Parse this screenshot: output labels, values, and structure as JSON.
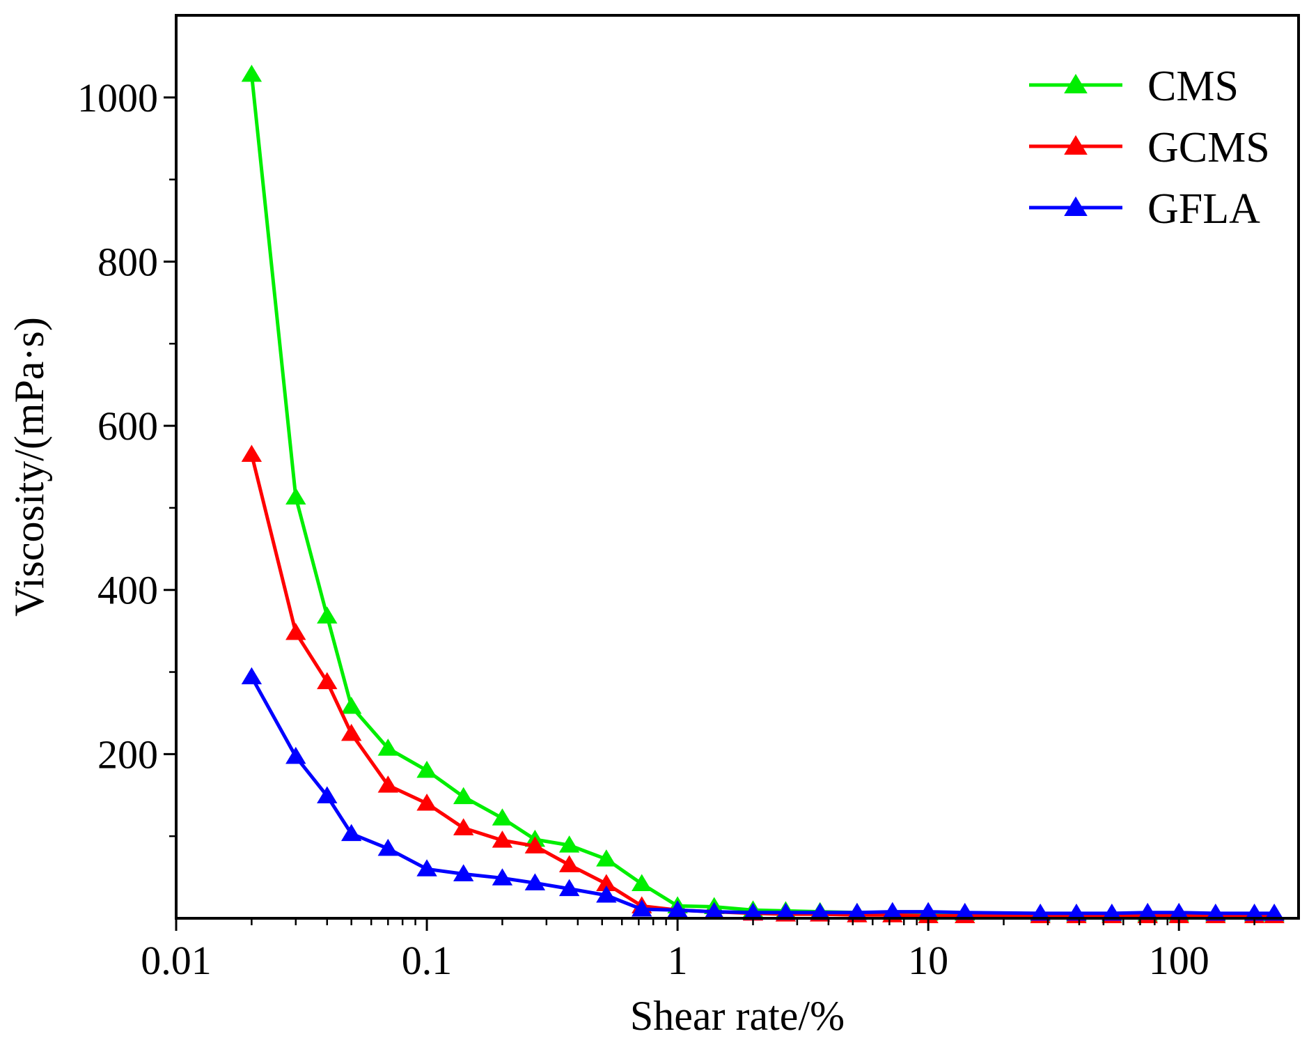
{
  "chart_data": {
    "type": "line",
    "title": "",
    "xlabel": "Shear rate/%",
    "ylabel": "Viscosity/(mPa·s)",
    "xscale": "log",
    "xlim": [
      0.01,
      300
    ],
    "ylim": [
      0,
      1100
    ],
    "x_ticks": [
      0.01,
      0.1,
      1,
      10,
      100
    ],
    "x_tick_labels": [
      "0.01",
      "0.1",
      "1",
      "10",
      "100"
    ],
    "y_ticks": [
      200,
      400,
      600,
      800,
      1000
    ],
    "y_tick_labels": [
      "200",
      "400",
      "600",
      "800",
      "1000"
    ],
    "legend_position": "top-right",
    "marker": "triangle",
    "series": [
      {
        "name": "CMS",
        "color": "#00ee00",
        "x": [
          0.02,
          0.03,
          0.04,
          0.05,
          0.07,
          0.1,
          0.14,
          0.2,
          0.27,
          0.37,
          0.52,
          0.72,
          1,
          1.4,
          2,
          2.7,
          3.7,
          5.2,
          7.2,
          10,
          14,
          28,
          39,
          54,
          75,
          100,
          140,
          200,
          240
        ],
        "y": [
          1028,
          513,
          368,
          258,
          207,
          180,
          148,
          122,
          96,
          89,
          72,
          42,
          15,
          14,
          10,
          9,
          8,
          7,
          7,
          6,
          6,
          5,
          5,
          5,
          5,
          5,
          5,
          5,
          5
        ]
      },
      {
        "name": "GCMS",
        "color": "#ff0000",
        "x": [
          0.02,
          0.03,
          0.04,
          0.05,
          0.07,
          0.1,
          0.14,
          0.2,
          0.27,
          0.37,
          0.52,
          0.72,
          1,
          1.4,
          2,
          2.7,
          3.7,
          5.2,
          7.2,
          10,
          14,
          28,
          39,
          54,
          75,
          100,
          140,
          200,
          240
        ],
        "y": [
          565,
          348,
          288,
          225,
          162,
          140,
          110,
          95,
          88,
          65,
          42,
          15,
          10,
          8,
          6,
          5,
          5,
          4,
          4,
          3,
          3,
          3,
          3,
          3,
          3,
          3,
          3,
          3,
          3
        ]
      },
      {
        "name": "GFLA",
        "color": "#0000ff",
        "x": [
          0.02,
          0.03,
          0.04,
          0.05,
          0.07,
          0.1,
          0.14,
          0.2,
          0.27,
          0.37,
          0.52,
          0.72,
          1,
          1.4,
          2,
          2.7,
          3.7,
          5.2,
          7.2,
          10,
          14,
          28,
          39,
          54,
          75,
          100,
          140,
          200,
          240
        ],
        "y": [
          294,
          197,
          149,
          103,
          85,
          60,
          54,
          49,
          43,
          36,
          28,
          11,
          10,
          8,
          7,
          7,
          7,
          7,
          8,
          8,
          7,
          6,
          6,
          6,
          7,
          7,
          6,
          6,
          6
        ]
      }
    ]
  }
}
